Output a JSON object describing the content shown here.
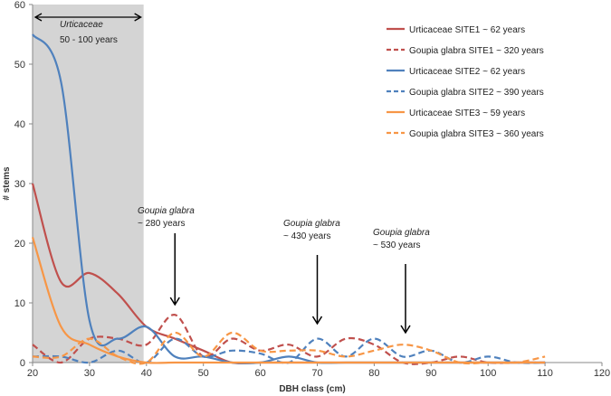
{
  "chart_data": {
    "type": "line",
    "xlabel": "DBH class (cm)",
    "ylabel": "# stems",
    "xlim": [
      20,
      120
    ],
    "ylim": [
      0,
      60
    ],
    "xticks": [
      20,
      30,
      40,
      50,
      60,
      70,
      80,
      90,
      100,
      110,
      120
    ],
    "yticks": [
      0,
      10,
      20,
      30,
      40,
      50,
      60
    ],
    "x": [
      20,
      25,
      30,
      35,
      40,
      45,
      50,
      55,
      60,
      65,
      70,
      75,
      80,
      85,
      90,
      95,
      100,
      105,
      110
    ],
    "legend_position": "top-right",
    "series": [
      {
        "name": "Urticaceae SITE1 ~ 62 years",
        "color": "#C0504D",
        "dash": false,
        "values": [
          30,
          13.5,
          15,
          11.5,
          6,
          4,
          2,
          0,
          0,
          0,
          0,
          0,
          0,
          0,
          0,
          0,
          0,
          0,
          0
        ]
      },
      {
        "name": "Goupia glabra SITE1 ~ 320 years",
        "color": "#C0504D",
        "dash": true,
        "values": [
          3,
          0,
          4,
          4,
          3,
          8,
          1,
          4,
          2,
          3,
          1,
          4,
          3,
          0,
          0,
          1,
          0,
          0,
          0
        ]
      },
      {
        "name": "Urticaceae SITE2 ~ 62 years",
        "color": "#4F81BD",
        "dash": false,
        "values": [
          55,
          47,
          7,
          4,
          6,
          1,
          1,
          0,
          0,
          1,
          0,
          0,
          0,
          0,
          0,
          0,
          0,
          0,
          0
        ]
      },
      {
        "name": "Goupia glabra SITE2 ~ 390 years",
        "color": "#4F81BD",
        "dash": true,
        "values": [
          1,
          1,
          0,
          2,
          0,
          4,
          1,
          2,
          1.5,
          0,
          4,
          1,
          4,
          1,
          2,
          0,
          1,
          0,
          0
        ]
      },
      {
        "name": "Urticaceae SITE3 ~ 59 years",
        "color": "#F79646",
        "dash": false,
        "values": [
          21,
          6,
          3,
          1,
          0,
          0,
          0,
          0,
          0,
          0,
          0,
          0,
          0,
          0,
          0,
          0,
          0,
          0,
          0
        ]
      },
      {
        "name": "Goupia glabra SITE3 ~ 360 years",
        "color": "#F79646",
        "dash": true,
        "values": [
          1,
          1,
          4,
          1,
          0,
          5,
          1,
          5,
          2,
          2,
          2,
          1,
          2,
          3,
          2,
          0,
          0,
          0,
          1
        ]
      }
    ],
    "shaded_region": {
      "x": [
        20,
        39.5
      ],
      "label_species": "Urticaceae",
      "label_age": "50 - 100 years"
    },
    "annotations": [
      {
        "species": "Goupia glabra",
        "age": "~ 280 years",
        "x": 45
      },
      {
        "species": "Goupia glabra",
        "age": "~ 430 years",
        "x": 70
      },
      {
        "species": "Goupia glabra",
        "age": "~ 530 years",
        "x": 85.5
      }
    ]
  }
}
